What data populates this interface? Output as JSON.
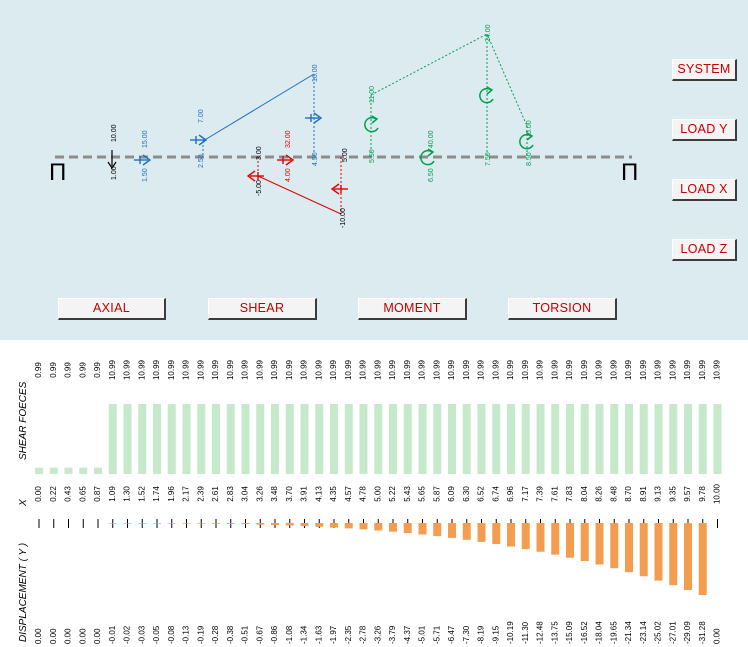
{
  "buttons": {
    "system": "SYSTEM",
    "load_y": "LOAD Y",
    "load_x": "LOAD X",
    "load_z": "LOAD Z",
    "axial": "AXIAL",
    "shear": "SHEAR",
    "moment": "MOMENT",
    "torsion": "TORSION"
  },
  "colors": {
    "axial": "#000000",
    "load_y": "#1f6fbf",
    "load_x": "#e00000",
    "moment": "#00a050",
    "shear_bar": "#c6e9cc",
    "displacement_bar": "#f59d4f",
    "button_text": "#c00000",
    "panel_bg": "#dcebf0"
  },
  "beam": {
    "support_symbol": "Π",
    "axial": [
      {
        "pos": "1.00",
        "value": "10.00"
      }
    ],
    "load_y": [
      {
        "pos": "1.50",
        "value": "15.00"
      },
      {
        "pos": "2.50",
        "value": "7.00"
      },
      {
        "pos": "4.50",
        "value": "16.00"
      }
    ],
    "load_x": [
      {
        "pos": "3.00",
        "value": "-5.00"
      },
      {
        "pos": "4.00",
        "value": "32.00"
      },
      {
        "pos": "5.00",
        "value": "-10.00"
      }
    ],
    "moments": [
      {
        "pos": "5.50",
        "value": "11.00"
      },
      {
        "pos": "6.50",
        "value": "40.00"
      },
      {
        "pos": "7.50",
        "value": "24.00"
      },
      {
        "pos": "8.50",
        "value": "5.00"
      }
    ]
  },
  "chart_data": {
    "type": "bar",
    "series_labels": {
      "shear": "SHEAR FOECES",
      "x": "X",
      "displacement": "DISPLACEMENT ( Y )"
    },
    "x": [
      "0.00",
      "0.22",
      "0.43",
      "0.65",
      "0.87",
      "1.09",
      "1.30",
      "1.52",
      "1.74",
      "1.96",
      "2.17",
      "2.39",
      "2.61",
      "2.83",
      "3.04",
      "3.26",
      "3.48",
      "3.70",
      "3.91",
      "4.13",
      "4.35",
      "4.57",
      "4.78",
      "5.00",
      "5.22",
      "5.43",
      "5.65",
      "5.87",
      "6.09",
      "6.30",
      "6.52",
      "6.74",
      "6.96",
      "7.17",
      "7.39",
      "7.61",
      "7.83",
      "8.04",
      "8.26",
      "8.48",
      "8.70",
      "8.91",
      "9.13",
      "9.35",
      "9.57",
      "9.78",
      "10.00"
    ],
    "shear": [
      "0.99",
      "0.99",
      "0.99",
      "0.99",
      "0.99",
      "10.99",
      "10.99",
      "10.99",
      "10.99",
      "10.99",
      "10.99",
      "10.99",
      "10.99",
      "10.99",
      "10.99",
      "10.99",
      "10.99",
      "10.99",
      "10.99",
      "10.99",
      "10.99",
      "10.99",
      "10.99",
      "10.99",
      "10.99",
      "10.99",
      "10.99",
      "10.99",
      "10.99",
      "10.99",
      "10.99",
      "10.99",
      "10.99",
      "10.99",
      "10.99",
      "10.99",
      "10.99",
      "10.99",
      "10.99",
      "10.99",
      "10.99",
      "10.99",
      "10.99",
      "10.99",
      "10.99",
      "10.99",
      "10.99"
    ],
    "displacement": [
      "0.00",
      "0.00",
      "0.00",
      "0.00",
      "0.00",
      "-0.01",
      "-0.02",
      "-0.03",
      "-0.05",
      "-0.08",
      "-0.13",
      "-0.19",
      "-0.28",
      "-0.38",
      "-0.51",
      "-0.67",
      "-0.86",
      "-1.08",
      "-1.34",
      "-1.63",
      "-1.97",
      "-2.35",
      "-2.78",
      "-3.26",
      "-3.79",
      "-4.37",
      "-5.01",
      "-5.71",
      "-6.47",
      "-7.30",
      "-8.19",
      "-9.15",
      "-10.19",
      "-11.30",
      "-12.48",
      "-13.75",
      "-15.09",
      "-16.52",
      "-18.04",
      "-19.65",
      "-21.34",
      "-23.14",
      "-25.02",
      "-27.01",
      "-29.09",
      "-31.28",
      "0.00"
    ]
  }
}
